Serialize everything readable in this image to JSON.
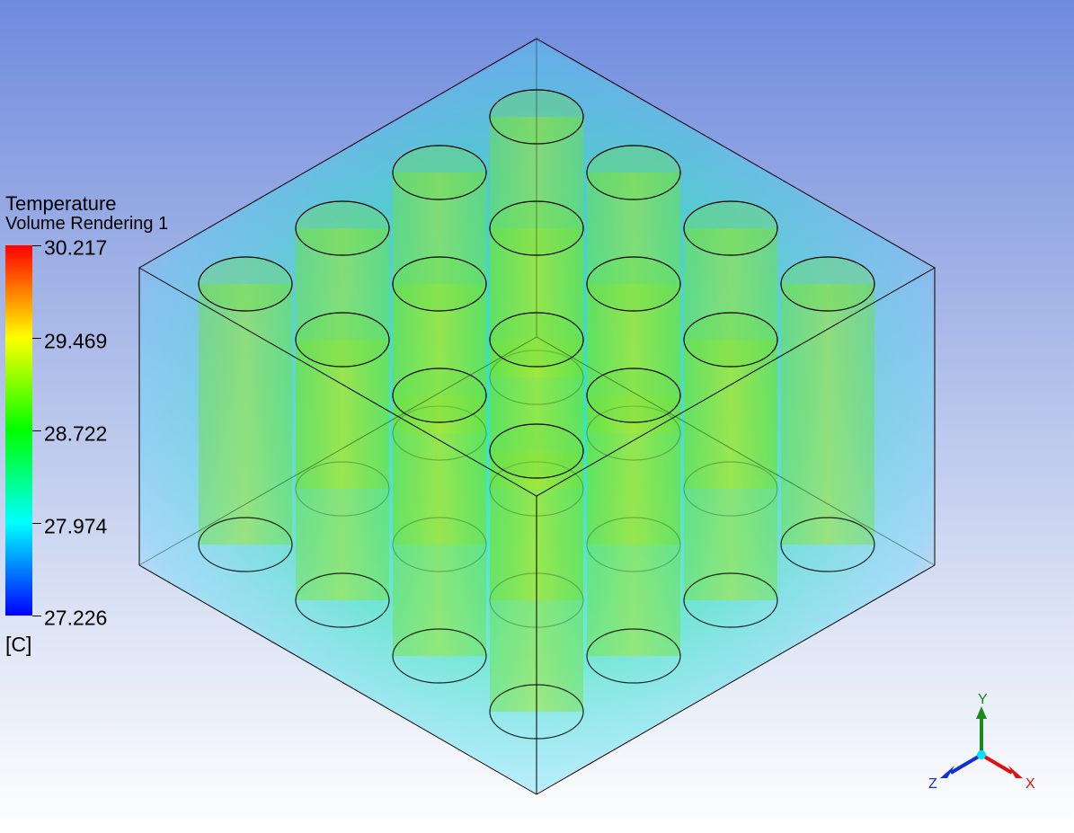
{
  "legend": {
    "title": "Temperature",
    "subtitle": "Volume Rendering 1",
    "unit": "[C]",
    "ticks": [
      "30.217",
      "29.469",
      "28.722",
      "27.974",
      "27.226"
    ],
    "range": [
      27.226,
      30.217
    ]
  },
  "triad": {
    "y_label": "Y",
    "x_label": "X",
    "z_label": "Z"
  },
  "colors": {
    "background_top": "#6f8bde",
    "background_bottom": "#ffffff",
    "triad_y": "#1a8a1a",
    "triad_x": "#e01010",
    "triad_z": "#1030d0",
    "triad_origin": "#00e0ff"
  },
  "scene": {
    "description_icons": [
      "volume-rendering",
      "cylinder-array",
      "bounding-box",
      "axis-triad"
    ]
  }
}
